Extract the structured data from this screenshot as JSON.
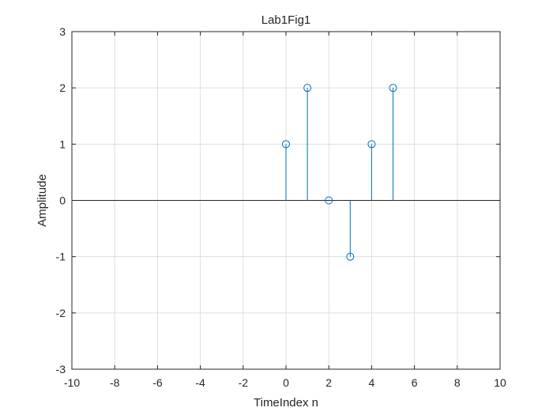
{
  "chart_data": {
    "type": "stem",
    "title": "Lab1Fig1",
    "xlabel": "TimeIndex n",
    "ylabel": "Amplitude",
    "xlim": [
      -10,
      10
    ],
    "ylim": [
      -3,
      3
    ],
    "x_ticks": [
      -10,
      -8,
      -6,
      -4,
      -2,
      0,
      2,
      4,
      6,
      8,
      10
    ],
    "y_ticks": [
      -3,
      -2,
      -1,
      0,
      1,
      2,
      3
    ],
    "grid": true,
    "baseline": 0,
    "series": [
      {
        "x": [
          0,
          1,
          2,
          3,
          4,
          5
        ],
        "y": [
          1,
          2,
          0,
          -1,
          1,
          2
        ]
      }
    ],
    "colors": {
      "stem": "#0072bd",
      "grid": "#dfdfdf",
      "axes": "#262626",
      "baseline": "#262626"
    }
  }
}
